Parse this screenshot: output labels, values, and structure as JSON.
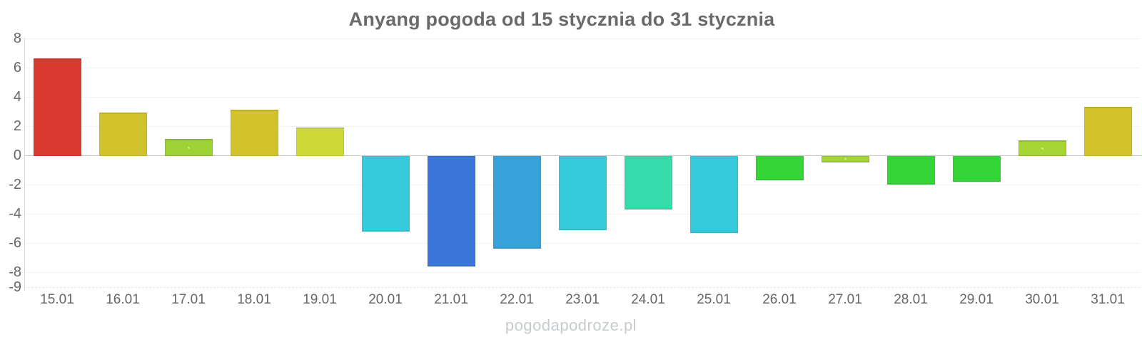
{
  "title": "Anyang pogoda od 15 stycznia do 31 stycznia",
  "watermark": "pogodapodroze.pl",
  "colors": {
    "title_text": "#6a6a6a",
    "axis_label_text": "#666666",
    "gridline": "#f2f2f2",
    "zero_line": "#c8c8c8",
    "axis_line": "#d9d9d9",
    "watermark_text": "#c6cbce",
    "background": "#ffffff"
  },
  "chart_data": {
    "type": "bar",
    "title": "Anyang pogoda od 15 stycznia do 31 stycznia",
    "xlabel": "",
    "ylabel": "",
    "ylim": [
      -9,
      8
    ],
    "grid": true,
    "legend_position": "none",
    "y_ticks": [
      8,
      6,
      4,
      2,
      0,
      -2,
      -4,
      -6,
      -8,
      -9
    ],
    "categories": [
      "15.01",
      "16.01",
      "17.01",
      "18.01",
      "19.01",
      "20.01",
      "21.01",
      "22.01",
      "23.01",
      "24.01",
      "25.01",
      "26.01",
      "27.01",
      "28.01",
      "29.01",
      "30.01",
      "31.01"
    ],
    "values": [
      6.6,
      2.9,
      1.1,
      3.1,
      1.9,
      -5.1,
      -7.5,
      -6.3,
      -5.0,
      -3.6,
      -5.2,
      -1.6,
      -0.4,
      -1.9,
      -1.7,
      1.0,
      3.3
    ],
    "bar_colors": [
      "#d83a30",
      "#d2c22c",
      "#9dd334",
      "#d2c22c",
      "#cbd835",
      "#35cadb",
      "#3a75da",
      "#37a2da",
      "#35cadb",
      "#37dbaa",
      "#35cadb",
      "#33d636",
      "#a6d634",
      "#33d636",
      "#33d636",
      "#a6d634",
      "#d2c22c"
    ],
    "dotted_pattern": [
      false,
      false,
      true,
      false,
      false,
      false,
      false,
      false,
      false,
      false,
      false,
      false,
      true,
      false,
      false,
      true,
      false
    ]
  }
}
